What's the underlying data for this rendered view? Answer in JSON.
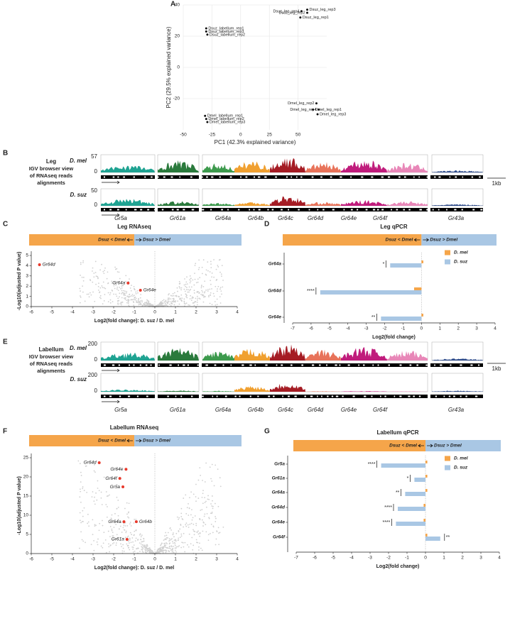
{
  "panel_labels": [
    "A",
    "B",
    "C",
    "D",
    "E",
    "F",
    "G"
  ],
  "chart_data": [
    {
      "type": "scatter",
      "xlabel": "PC1 (42.3% explained variance)",
      "ylabel": "PC2 (29.5% explained variance)",
      "xlim": [
        -50,
        75
      ],
      "xticks": [
        -50,
        -25,
        0,
        25,
        50
      ],
      "ylim": [
        -40,
        40
      ],
      "yticks": [
        -20,
        0,
        20,
        40
      ],
      "grid": true,
      "series": [
        {
          "color": "#2e86c1",
          "labels": [
            "Dsuz_labellum_rep1",
            "Dsuz_labellum_rep3",
            "Dsuz_labellum_rep2"
          ],
          "x": [
            -30,
            -30,
            -29
          ],
          "values": [
            25,
            23,
            21
          ]
        },
        {
          "color": "#2e86c1",
          "labels": [
            "Dsuz_leg_rep4",
            "Dsuz_leg_rep3",
            "Dsuz_leg_rep2",
            "Dsuz_leg_rep1"
          ],
          "x": [
            53,
            58,
            58,
            52
          ],
          "values": [
            36,
            37,
            35,
            32
          ]
        },
        {
          "color": "#d35f1a",
          "labels": [
            "Dmel_leg_rep2",
            "Dmel_leg_rep1",
            "Dmel_leg_rep4",
            "Dmel_leg_rep3"
          ],
          "x": [
            66,
            63,
            68,
            67
          ],
          "values": [
            -23,
            -27,
            -27,
            -30
          ]
        },
        {
          "color": "#d35f1a",
          "labels": [
            "Dmel_labellum_rep1",
            "Dmel_labellum_rep2",
            "Dmel_labellum_rep3"
          ],
          "x": [
            -31,
            -30,
            -29
          ],
          "values": [
            -31,
            -33,
            -35
          ]
        }
      ]
    },
    {
      "type": "scatter",
      "title": "Leg RNAseq",
      "banner": [
        "Dsuz < Dmel",
        "Dsuz > Dmel"
      ],
      "xlabel": "Log2(fold change): D. suz / D. mel",
      "ylabel": "-Log10(adjusted P value)",
      "xlim": [
        -6,
        4
      ],
      "xticks": [
        -6,
        -5,
        -4,
        -3,
        -2,
        -1,
        0,
        1,
        2,
        3,
        4
      ],
      "ylim": [
        0,
        5
      ],
      "yticks": [
        0,
        1,
        2,
        3,
        4,
        5
      ],
      "color": "#e8392b",
      "labels": [
        "Gr64d",
        "Gr64a",
        "Gr64e"
      ],
      "x": [
        -5.6,
        -1.3,
        -0.7
      ],
      "values": [
        4.1,
        2.3,
        1.6
      ]
    },
    {
      "type": "bar",
      "title": "Leg qPCR",
      "banner": [
        "Dsuz < Dmel",
        "Dsuz > Dmel"
      ],
      "xlabel": "Log2(fold change)",
      "xlim": [
        -7,
        4
      ],
      "xticks": [
        -7,
        -6,
        -5,
        -4,
        -3,
        -2,
        -1,
        0,
        1,
        2,
        3,
        4
      ],
      "categories": [
        "Gr64a",
        "Gr64d",
        "Gr64e"
      ],
      "series": [
        {
          "name": "D. mel",
          "color": "#f5a54a",
          "values": [
            0.1,
            -0.4,
            0.1
          ]
        },
        {
          "name": "D. suz",
          "color": "#a9c7e4",
          "values": [
            -1.7,
            -5.5,
            -2.2
          ]
        }
      ],
      "significance": [
        "*",
        "****",
        "**"
      ]
    },
    {
      "type": "scatter",
      "title": "Labellum RNAseq",
      "banner": [
        "Dsuz < Dmel",
        "Dsuz > Dmel"
      ],
      "xlabel": "Log2(fold change): D. suz / D. mel",
      "ylabel": "-Log10(adjusted P value)",
      "xlim": [
        -6,
        4
      ],
      "xticks": [
        -6,
        -5,
        -4,
        -3,
        -2,
        -1,
        0,
        1,
        2,
        3,
        4
      ],
      "ylim": [
        0,
        25
      ],
      "yticks": [
        0,
        5,
        10,
        15,
        20,
        25
      ],
      "color": "#e8392b",
      "labels": [
        "Gr64d",
        "Gr64e",
        "Gr64f",
        "Gr5a",
        "Gr64a",
        "Gr64b",
        "Gr61a"
      ],
      "x": [
        -2.7,
        -1.4,
        -1.7,
        -1.55,
        -1.5,
        -0.9,
        -1.35
      ],
      "values": [
        23.7,
        22,
        19.6,
        17.4,
        8.3,
        8.3,
        3.7
      ]
    },
    {
      "type": "bar",
      "title": "Labellum qPCR",
      "banner": [
        "Dsuz < Dmel",
        "Dsuz > Dmel"
      ],
      "xlabel": "Log2(fold change)",
      "xlim": [
        -7,
        4
      ],
      "xticks": [
        -7,
        -6,
        -5,
        -4,
        -3,
        -2,
        -1,
        0,
        1,
        2,
        3,
        4
      ],
      "categories": [
        "Gr5a",
        "Gr61a",
        "Gr64a",
        "Gr64d",
        "Gr64e",
        "Gr64f"
      ],
      "series": [
        {
          "name": "D. mel",
          "color": "#f5a54a",
          "values": [
            0.1,
            0.1,
            0.1,
            -0.1,
            -0.1,
            0.1
          ]
        },
        {
          "name": "D. suz",
          "color": "#a9c7e4",
          "values": [
            -2.4,
            -0.6,
            -1.1,
            -1.5,
            -1.6,
            0.8
          ]
        }
      ],
      "significance": [
        "****",
        "*",
        "**",
        "****",
        "****",
        "**"
      ]
    }
  ],
  "igv": [
    {
      "title": [
        "Leg",
        "IGV browser view",
        "of RNAseq reads",
        "alignments"
      ],
      "tracks": [
        {
          "name": "D. mel",
          "max": 57,
          "min": 0
        },
        {
          "name": "D. suz",
          "max": 50,
          "min": 0
        }
      ],
      "genes": [
        "Gr5a",
        "Gr61a",
        "Gr64a",
        "Gr64b",
        "Gr64c",
        "Gr64d",
        "Gr64e",
        "Gr64f",
        "Gr43a"
      ],
      "scale_bar": "1kb"
    },
    {
      "title": [
        "Labellum",
        "IGV browser view",
        "of RNAseq reads",
        "alignments"
      ],
      "tracks": [
        {
          "name": "D. mel",
          "max": 200,
          "min": 0
        },
        {
          "name": "D. suz",
          "max": 200,
          "min": 0
        }
      ],
      "genes": [
        "Gr5a",
        "Gr61a",
        "Gr64a",
        "Gr64b",
        "Gr64c",
        "Gr64d",
        "Gr64e",
        "Gr64f",
        "Gr43a"
      ],
      "scale_bar": "1kb"
    }
  ]
}
